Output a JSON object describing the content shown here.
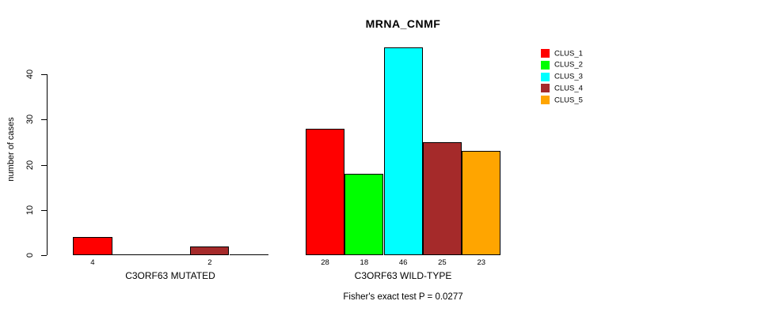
{
  "chart_data": {
    "type": "bar",
    "title": "MRNA_CNMF",
    "ylabel": "number of cases",
    "yticks": [
      0,
      10,
      20,
      30,
      40
    ],
    "ylim": [
      0,
      46
    ],
    "grid": false,
    "legend_position": "top-right",
    "legend": [
      {
        "label": "CLUS_1",
        "color": "#FF0000"
      },
      {
        "label": "CLUS_2",
        "color": "#00FF00"
      },
      {
        "label": "CLUS_3",
        "color": "#00FFFF"
      },
      {
        "label": "CLUS_4",
        "color": "#A52A2A"
      },
      {
        "label": "CLUS_5",
        "color": "#FFA500"
      }
    ],
    "groups": [
      {
        "label": "C3ORF63 MUTATED",
        "values": [
          4,
          0,
          0,
          2,
          0
        ]
      },
      {
        "label": "C3ORF63 WILD-TYPE",
        "values": [
          28,
          18,
          46,
          25,
          23
        ]
      }
    ],
    "footnote": "Fisher's exact test P = 0.0277"
  }
}
